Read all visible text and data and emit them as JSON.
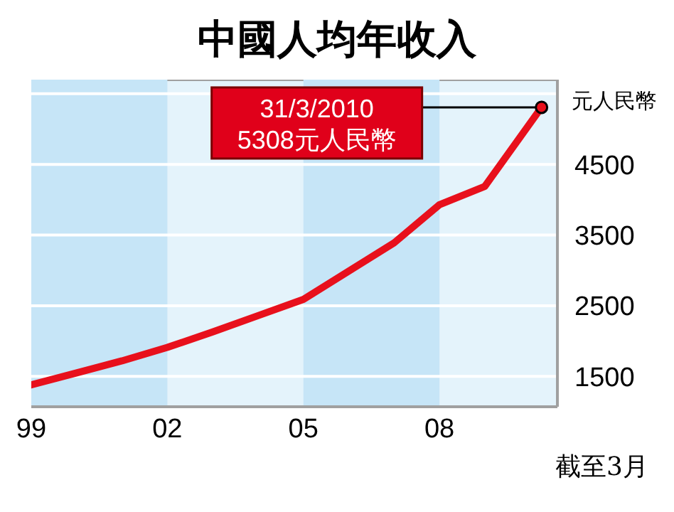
{
  "chart_data": {
    "type": "line",
    "title": "中國人均年收入",
    "ylabel": "元人民幣",
    "x": [
      1999,
      2000,
      2001,
      2002,
      2003,
      2004,
      2005,
      2006,
      2007,
      2008,
      2009,
      2010.25
    ],
    "series": [
      {
        "color": "#e8101c",
        "values": [
          1380,
          1550,
          1720,
          1910,
          2130,
          2360,
          2590,
          2990,
          3390,
          3930,
          4190,
          5308
        ]
      }
    ],
    "xlim": [
      1999,
      2010.6
    ],
    "xticks": [
      {
        "value": 1999,
        "label": "99"
      },
      {
        "value": 2002,
        "label": "02"
      },
      {
        "value": 2005,
        "label": "05"
      },
      {
        "value": 2008,
        "label": "08"
      }
    ],
    "ylim": [
      1070,
      5700
    ],
    "yticks": [
      1500,
      2500,
      3500,
      4500,
      {
        "value": 5500,
        "label": null
      }
    ],
    "grid": "y",
    "legend": false,
    "marker": "none",
    "line_style": "solid",
    "bands": [
      {
        "axis": "x",
        "from": 1999,
        "to": 2002,
        "color": "#c6e5f7"
      },
      {
        "axis": "x",
        "from": 2005,
        "to": 2008,
        "color": "#c6e5f7"
      }
    ],
    "annotations": [
      {
        "text": "31/3/2010\n5308元人民幣",
        "x": 2010.25,
        "y": 5308
      },
      "截至3月"
    ]
  }
}
